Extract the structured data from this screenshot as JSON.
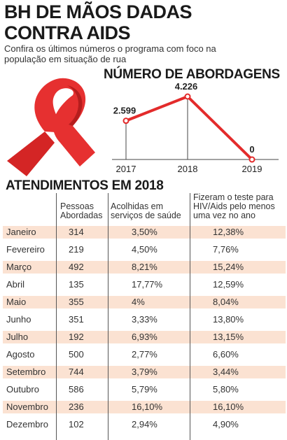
{
  "header": {
    "title_line1": "BH DE MÃOS DADAS",
    "title_line2": "CONTRA AIDS",
    "subtitle_line1": "Confira os últimos números o programa com foco na",
    "subtitle_line2": "população em situação de rua"
  },
  "colors": {
    "accent": "#e32b2b",
    "row_shading": "#fbe2d2"
  },
  "chart_data": {
    "type": "line",
    "title": "NÚMERO DE ABORDAGENS",
    "x": [
      "2017",
      "2018",
      "2019"
    ],
    "values": [
      2599,
      4226,
      0
    ],
    "data_labels": [
      "2.599",
      "4.226",
      "0"
    ],
    "xlabel": "",
    "ylabel": "",
    "grid": false,
    "color": "#e32b2b"
  },
  "table": {
    "title": "ATENDIMENTOS EM 2018",
    "headers": {
      "col1_line1": "Pessoas",
      "col1_line2": "Abordadas",
      "col2_line1": "Acolhidas em",
      "col2_line2": "serviços de saúde",
      "col3_line1": "Fizeram o teste para",
      "col3_line2": "HIV/Aids pelo menos",
      "col3_line3": "uma vez no ano"
    },
    "rows": [
      [
        "Janeiro",
        "314",
        "3,50%",
        "12,38%"
      ],
      [
        "Fevereiro",
        "219",
        "4,50%",
        "7,76%"
      ],
      [
        "Março",
        "492",
        "8,21%",
        "15,24%"
      ],
      [
        "Abril",
        "135",
        "17,77%",
        "12,59%"
      ],
      [
        "Maio",
        "355",
        "4%",
        "8,04%"
      ],
      [
        "Junho",
        "351",
        "3,33%",
        "13,80%"
      ],
      [
        "Julho",
        "192",
        "6,93%",
        "13,15%"
      ],
      [
        "Agosto",
        "500",
        "2,77%",
        "6,60%"
      ],
      [
        "Setembro",
        "744",
        "3,79%",
        "3,44%"
      ],
      [
        "Outubro",
        "586",
        "5,79%",
        "5,80%"
      ],
      [
        "Novembro",
        "236",
        "16,10%",
        "16,10%"
      ],
      [
        "Dezembro",
        "102",
        "2,94%",
        "4,90%"
      ]
    ]
  }
}
